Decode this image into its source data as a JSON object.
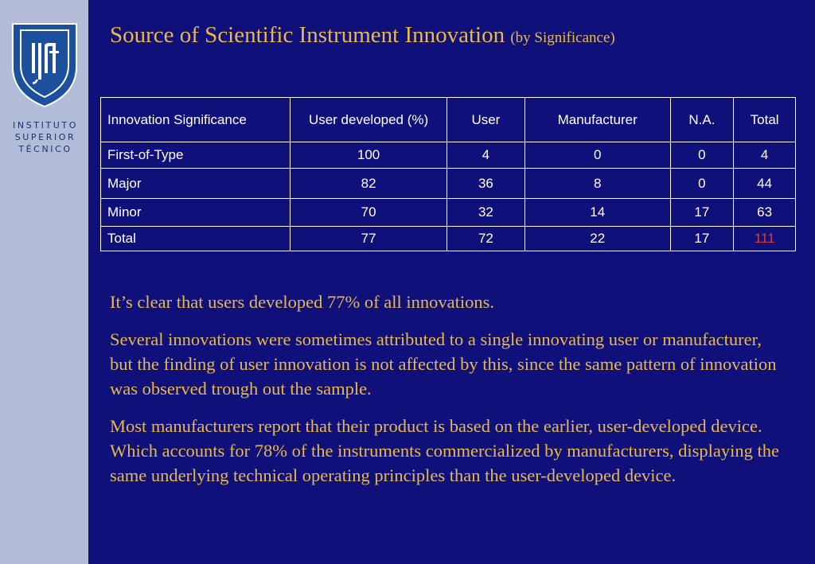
{
  "logo": {
    "line1": "INSTITUTO",
    "line2": "SUPERIOR",
    "line3": "TÉCNICO"
  },
  "title": {
    "main": "Source of Scientific Instrument Innovation",
    "sub": "(by Significance)"
  },
  "table": {
    "headers": [
      "Innovation Significance",
      "User developed (%)",
      "User",
      "Manufacturer",
      "N.A.",
      "Total"
    ],
    "rows": [
      [
        "First-of-Type",
        "100",
        "4",
        "0",
        "0",
        "4"
      ],
      [
        "Major",
        "82",
        "36",
        "8",
        "0",
        "44"
      ],
      [
        "Minor",
        "70",
        "32",
        "14",
        "17",
        "63"
      ],
      [
        "Total",
        "77",
        "72",
        "22",
        "17",
        "111"
      ]
    ]
  },
  "paragraphs": [
    "It’s clear that users developed 77% of all innovations.",
    "Several innovations were sometimes attributed to a single innovating user or manufacturer, but the finding of user innovation is not affected by this, since the same pattern of innovation was observed trough out the sample.",
    "Most manufacturers report that their product is based on the earlier, user-developed device. Which accounts for 78% of the instruments commercialized by manufacturers, displaying the same underlying technical operating principles than the user-developed device."
  ],
  "colors": {
    "background": "#10107a",
    "sidebar": "#b2bcd8",
    "title": "#e8b94a",
    "total_highlight": "#e03c2a"
  }
}
